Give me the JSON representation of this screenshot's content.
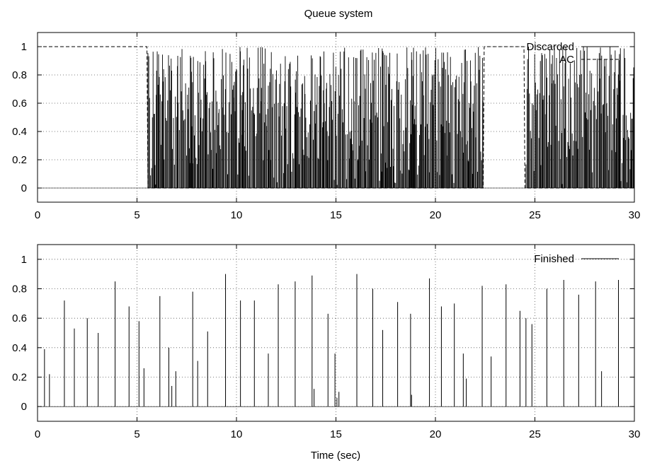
{
  "title": "Queue system",
  "chart_data": [
    {
      "type": "bar",
      "panel": "top",
      "xlim": [
        0,
        30
      ],
      "ylim": [
        -0.1,
        1.1
      ],
      "x_ticks": [
        "0",
        "5",
        "10",
        "15",
        "20",
        "25",
        "30"
      ],
      "y_ticks": [
        "0",
        "0.2",
        "0.4",
        "0.6",
        "0.8",
        "1"
      ],
      "grid": true,
      "legend_placement": "top-right",
      "series": [
        {
          "name": "Discarded",
          "style": "impulses",
          "color": "#000000",
          "active_intervals": [
            [
              5.5,
              22.4
            ],
            [
              24.5,
              30
            ]
          ],
          "peak_range": [
            0,
            1
          ],
          "note_values_dense": "hundreds of impulses between 0 and 1"
        },
        {
          "name": "AC",
          "style": "dashed-step",
          "color": "#000000",
          "steps": [
            [
              0,
              1
            ],
            [
              5.5,
              1
            ],
            [
              5.55,
              0
            ],
            [
              22.4,
              0
            ],
            [
              22.45,
              1
            ],
            [
              24.45,
              1
            ],
            [
              24.5,
              0
            ],
            [
              30,
              0
            ]
          ]
        }
      ]
    },
    {
      "type": "bar",
      "panel": "bottom",
      "xlim": [
        0,
        30
      ],
      "ylim": [
        -0.1,
        1.1
      ],
      "x_ticks": [
        "0",
        "5",
        "10",
        "15",
        "20",
        "25",
        "30"
      ],
      "y_ticks": [
        "0",
        "0.2",
        "0.4",
        "0.6",
        "0.8",
        "1"
      ],
      "xlabel": "Time (sec)",
      "grid": true,
      "legend_placement": "top-right",
      "series": [
        {
          "name": "Finished",
          "style": "impulses",
          "color": "#000000",
          "points": [
            [
              0.35,
              0.39
            ],
            [
              0.6,
              0.22
            ],
            [
              1.35,
              0.72
            ],
            [
              1.85,
              0.53
            ],
            [
              2.5,
              0.6
            ],
            [
              3.05,
              0.5
            ],
            [
              3.9,
              0.85
            ],
            [
              4.6,
              0.68
            ],
            [
              5.1,
              0.58
            ],
            [
              5.35,
              0.26
            ],
            [
              6.15,
              0.75
            ],
            [
              6.6,
              0.4
            ],
            [
              6.75,
              0.14
            ],
            [
              6.95,
              0.24
            ],
            [
              7.8,
              0.78
            ],
            [
              8.05,
              0.31
            ],
            [
              8.55,
              0.51
            ],
            [
              9.45,
              0.9
            ],
            [
              10.2,
              0.72
            ],
            [
              10.9,
              0.72
            ],
            [
              11.6,
              0.36
            ],
            [
              12.1,
              0.83
            ],
            [
              12.95,
              0.85
            ],
            [
              13.8,
              0.89
            ],
            [
              13.9,
              0.12
            ],
            [
              14.6,
              0.63
            ],
            [
              14.95,
              0.36
            ],
            [
              15.05,
              0.06
            ],
            [
              15.15,
              0.1
            ],
            [
              16.05,
              0.9
            ],
            [
              16.85,
              0.8
            ],
            [
              17.35,
              0.52
            ],
            [
              18.1,
              0.71
            ],
            [
              18.75,
              0.63
            ],
            [
              18.8,
              0.08
            ],
            [
              19.7,
              0.87
            ],
            [
              20.3,
              0.68
            ],
            [
              20.95,
              0.7
            ],
            [
              21.4,
              0.36
            ],
            [
              21.55,
              0.19
            ],
            [
              22.35,
              0.82
            ],
            [
              22.8,
              0.34
            ],
            [
              23.55,
              0.83
            ],
            [
              24.25,
              0.65
            ],
            [
              24.55,
              0.6
            ],
            [
              24.85,
              0.56
            ],
            [
              25.6,
              0.8
            ],
            [
              26.45,
              0.86
            ],
            [
              27.2,
              0.76
            ],
            [
              28.05,
              0.85
            ],
            [
              28.35,
              0.24
            ],
            [
              29.2,
              0.86
            ]
          ]
        }
      ]
    }
  ]
}
